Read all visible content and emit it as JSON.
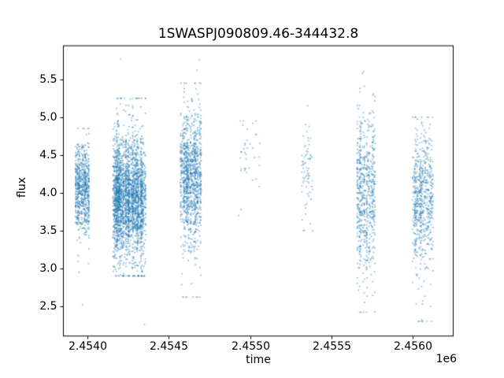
{
  "figure": {
    "title": "1SWASPJ090809.46-344432.8",
    "xlabel": "time",
    "ylabel": "flux",
    "offset_text": "1e6"
  },
  "chart_data": {
    "type": "scatter",
    "title": "1SWASPJ090809.46-344432.8",
    "xlabel": "time",
    "ylabel": "flux",
    "x_unit_offset": "1e6",
    "xlim": [
      2453850,
      2456250
    ],
    "ylim": [
      2.1,
      5.95
    ],
    "x_ticks": [
      2454000,
      2454500,
      2455000,
      2455500,
      2456000
    ],
    "x_tick_labels": [
      "2.4540",
      "2.4545",
      "2.4550",
      "2.4555",
      "2.4560"
    ],
    "y_ticks": [
      2.5,
      3.0,
      3.5,
      4.0,
      4.5,
      5.0,
      5.5
    ],
    "y_tick_labels": [
      "2.5",
      "3.0",
      "3.5",
      "4.0",
      "4.5",
      "5.0",
      "5.5"
    ],
    "grid": false,
    "legend": "none",
    "marker_color": "#1f77b4",
    "marker_alpha": 0.45,
    "marker_size_px": 1.8,
    "clusters": [
      {
        "x_start": 2453925,
        "x_end": 2454012,
        "flux_mean": 4.05,
        "flux_sd": 0.28,
        "flux_min": 2.95,
        "flux_max": 4.85,
        "n_points": 700
      },
      {
        "x_start": 2454155,
        "x_end": 2454360,
        "flux_mean": 3.95,
        "flux_sd": 0.38,
        "flux_min": 2.9,
        "flux_max": 5.25,
        "n_points": 2600
      },
      {
        "x_start": 2454570,
        "x_end": 2454700,
        "flux_mean": 4.2,
        "flux_sd": 0.42,
        "flux_min": 2.62,
        "flux_max": 5.45,
        "n_points": 1100
      },
      {
        "x_start": 2454935,
        "x_end": 2455060,
        "flux_mean": 4.5,
        "flux_sd": 0.22,
        "flux_min": 3.7,
        "flux_max": 4.95,
        "n_points": 35
      },
      {
        "x_start": 2455315,
        "x_end": 2455385,
        "flux_mean": 4.3,
        "flux_sd": 0.35,
        "flux_min": 3.5,
        "flux_max": 5.15,
        "n_points": 70
      },
      {
        "x_start": 2455655,
        "x_end": 2455770,
        "flux_mean": 3.95,
        "flux_sd": 0.5,
        "flux_min": 2.42,
        "flux_max": 5.6,
        "n_points": 650
      },
      {
        "x_start": 2455995,
        "x_end": 2456125,
        "flux_mean": 3.9,
        "flux_sd": 0.45,
        "flux_min": 2.3,
        "flux_max": 5.0,
        "n_points": 650
      }
    ],
    "outliers": [
      [
        2454205,
        5.77
      ],
      [
        2454688,
        5.76
      ],
      [
        2454672,
        5.62
      ],
      [
        2455690,
        5.58
      ],
      [
        2455675,
        5.38
      ],
      [
        2453970,
        2.52
      ],
      [
        2454350,
        2.26
      ],
      [
        2454945,
        3.78
      ],
      [
        2454930,
        3.7
      ],
      [
        2455705,
        2.55
      ],
      [
        2456055,
        2.32
      ]
    ]
  }
}
